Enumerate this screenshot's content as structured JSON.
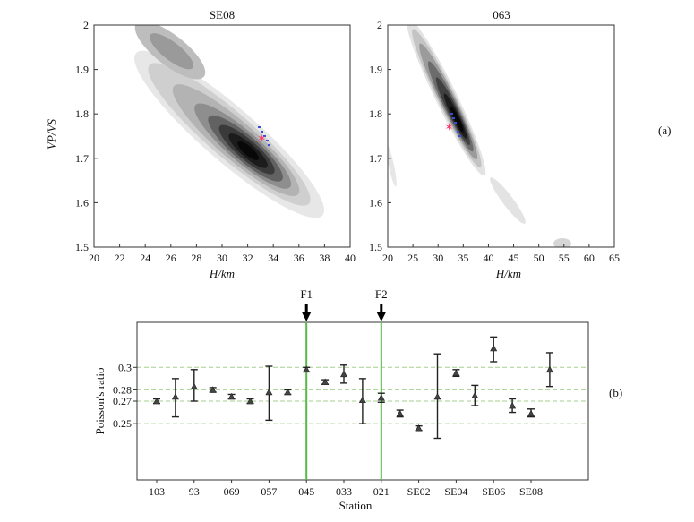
{
  "panel_labels": {
    "a": "(a)",
    "b": "(b)"
  },
  "fault_labels": [
    "F1",
    "F2"
  ],
  "chart_data": [
    {
      "type": "heatmap",
      "title": "SE08",
      "xlabel": "H/km",
      "ylabel": "VP/VS",
      "xlim": [
        20,
        40
      ],
      "ylim": [
        1.5,
        2.0
      ],
      "xticks": [
        "20",
        "22",
        "24",
        "26",
        "28",
        "30",
        "32",
        "34",
        "36",
        "38",
        "40"
      ],
      "yticks": [
        "1.5",
        "1.6",
        "1.7",
        "1.8",
        "1.9",
        "2"
      ],
      "best_fit": {
        "H": 33.1,
        "VpVs": 1.745
      },
      "max_ridge": [
        {
          "H": 24.5,
          "VpVs": 2.0
        },
        {
          "H": 26.0,
          "VpVs": 1.94
        },
        {
          "H": 28.0,
          "VpVs": 1.86
        },
        {
          "H": 30.5,
          "VpVs": 1.8
        },
        {
          "H": 33.1,
          "VpVs": 1.745
        },
        {
          "H": 35.5,
          "VpVs": 1.67
        },
        {
          "H": 36.5,
          "VpVs": 1.62
        }
      ]
    },
    {
      "type": "heatmap",
      "title": "063",
      "xlabel": "H/km",
      "ylabel": "",
      "xlim": [
        20,
        65
      ],
      "ylim": [
        1.5,
        2.0
      ],
      "xticks": [
        "20",
        "25",
        "30",
        "35",
        "40",
        "45",
        "50",
        "55",
        "60",
        "65"
      ],
      "yticks": [
        "1.5",
        "1.6",
        "1.7",
        "1.8",
        "1.9",
        "2"
      ],
      "best_fit": {
        "H": 32.2,
        "VpVs": 1.77
      },
      "max_ridge": [
        {
          "H": 26.0,
          "VpVs": 2.0
        },
        {
          "H": 28.5,
          "VpVs": 1.91
        },
        {
          "H": 31.0,
          "VpVs": 1.82
        },
        {
          "H": 32.2,
          "VpVs": 1.77
        },
        {
          "H": 33.5,
          "VpVs": 1.7
        },
        {
          "H": 34.5,
          "VpVs": 1.66
        }
      ]
    },
    {
      "type": "scatter",
      "xlabel": "Station",
      "ylabel": "Poisson's ratio",
      "ylim": [
        0.2,
        0.34
      ],
      "yticks": [
        {
          "value": 0.25,
          "label": "0.25"
        },
        {
          "value": 0.27,
          "label": "0.27"
        },
        {
          "value": 0.28,
          "label": "0.28"
        },
        {
          "value": 0.3,
          "label": "0.3"
        }
      ],
      "reference_lines": [
        0.25,
        0.27,
        0.28,
        0.3
      ],
      "xtick_labels": [
        {
          "index": 0,
          "label": "103"
        },
        {
          "index": 2,
          "label": "93"
        },
        {
          "index": 4,
          "label": "069"
        },
        {
          "index": 6,
          "label": "057"
        },
        {
          "index": 8,
          "label": "045"
        },
        {
          "index": 10,
          "label": "033"
        },
        {
          "index": 12,
          "label": "021"
        },
        {
          "index": 14,
          "label": "SE02"
        },
        {
          "index": 16,
          "label": "SE04"
        },
        {
          "index": 18,
          "label": "SE06"
        },
        {
          "index": 20,
          "label": "SE08"
        }
      ],
      "fault_positions": [
        8,
        12
      ],
      "points": [
        {
          "index": 0,
          "value": 0.27,
          "low": 0.268,
          "high": 0.272
        },
        {
          "index": 1,
          "value": 0.274,
          "low": 0.256,
          "high": 0.29
        },
        {
          "index": 2,
          "value": 0.283,
          "low": 0.27,
          "high": 0.298
        },
        {
          "index": 3,
          "value": 0.28,
          "low": 0.278,
          "high": 0.282
        },
        {
          "index": 4,
          "value": 0.274,
          "low": 0.272,
          "high": 0.276
        },
        {
          "index": 5,
          "value": 0.27,
          "low": 0.268,
          "high": 0.272
        },
        {
          "index": 6,
          "value": 0.278,
          "low": 0.253,
          "high": 0.301
        },
        {
          "index": 7,
          "value": 0.278,
          "low": 0.276,
          "high": 0.28
        },
        {
          "index": 8,
          "value": 0.298,
          "low": 0.296,
          "high": 0.3
        },
        {
          "index": 9,
          "value": 0.287,
          "low": 0.285,
          "high": 0.289
        },
        {
          "index": 10,
          "value": 0.294,
          "low": 0.286,
          "high": 0.302
        },
        {
          "index": 11,
          "value": 0.271,
          "low": 0.25,
          "high": 0.29
        },
        {
          "index": 12,
          "value": 0.273,
          "low": 0.269,
          "high": 0.277
        },
        {
          "index": 13,
          "value": 0.259,
          "low": 0.256,
          "high": 0.262
        },
        {
          "index": 14,
          "value": 0.246,
          "low": 0.244,
          "high": 0.248
        },
        {
          "index": 15,
          "value": 0.274,
          "low": 0.237,
          "high": 0.312
        },
        {
          "index": 16,
          "value": 0.295,
          "low": 0.292,
          "high": 0.298
        },
        {
          "index": 17,
          "value": 0.275,
          "low": 0.266,
          "high": 0.284
        },
        {
          "index": 18,
          "value": 0.317,
          "low": 0.305,
          "high": 0.327
        },
        {
          "index": 19,
          "value": 0.266,
          "low": 0.26,
          "high": 0.272
        },
        {
          "index": 20,
          "value": 0.259,
          "low": 0.256,
          "high": 0.263
        },
        {
          "index": 21,
          "value": 0.298,
          "low": 0.283,
          "high": 0.313
        }
      ]
    }
  ]
}
